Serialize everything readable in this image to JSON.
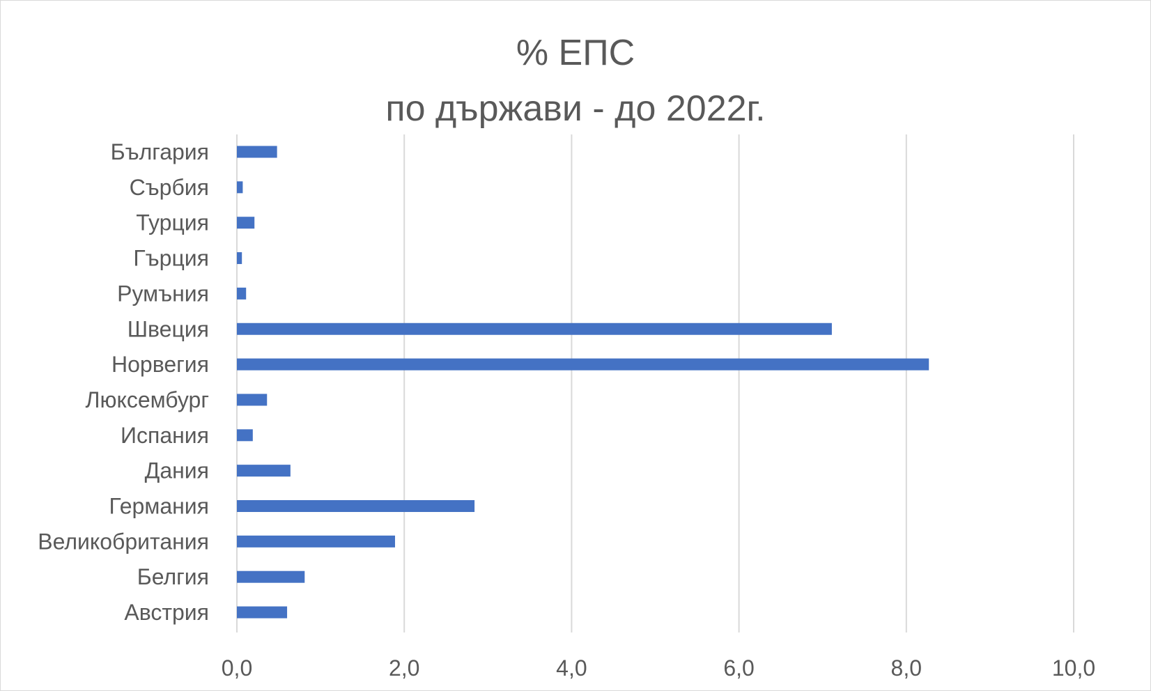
{
  "chart_data": {
    "type": "bar",
    "orientation": "horizontal",
    "title_lines": [
      "% ЕПС",
      "по държави - до 2022г."
    ],
    "categories": [
      "България",
      "Сърбия",
      "Турция",
      "Гърция",
      "Румъния",
      "Швеция",
      "Норвегия",
      "Люксембург",
      "Испания",
      "Дания",
      "Германия",
      "Великобритания",
      "Белгия",
      "Австрия"
    ],
    "values": [
      0.48,
      0.07,
      0.21,
      0.06,
      0.11,
      7.11,
      8.27,
      0.36,
      0.19,
      0.64,
      2.84,
      1.89,
      0.81,
      0.6
    ],
    "xlim": [
      0,
      10
    ],
    "xticks": [
      0,
      2,
      4,
      6,
      8,
      10
    ],
    "xtick_labels": [
      "0,0",
      "2,0",
      "4,0",
      "6,0",
      "8,0",
      "10,0"
    ],
    "xlabel": "",
    "ylabel": "",
    "grid": "vertical",
    "legend": "none",
    "bar_color": "#4472c4",
    "grid_color": "#d9d9d9",
    "text_color": "#595959"
  }
}
